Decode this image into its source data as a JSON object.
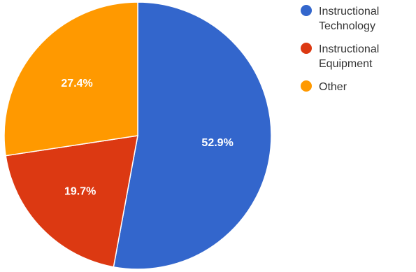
{
  "chart_data": {
    "type": "pie",
    "slices": [
      {
        "label": "Instructional Technology",
        "value": 52.9,
        "value_label": "52.9%",
        "color": "#3366cc"
      },
      {
        "label": "Instructional Equipment",
        "value": 19.7,
        "value_label": "19.7%",
        "color": "#dc3912"
      },
      {
        "label": "Other",
        "value": 27.4,
        "value_label": "27.4%",
        "color": "#ff9900"
      }
    ],
    "legend_position": "right",
    "start_angle": "12 o'clock",
    "direction": "clockwise"
  }
}
